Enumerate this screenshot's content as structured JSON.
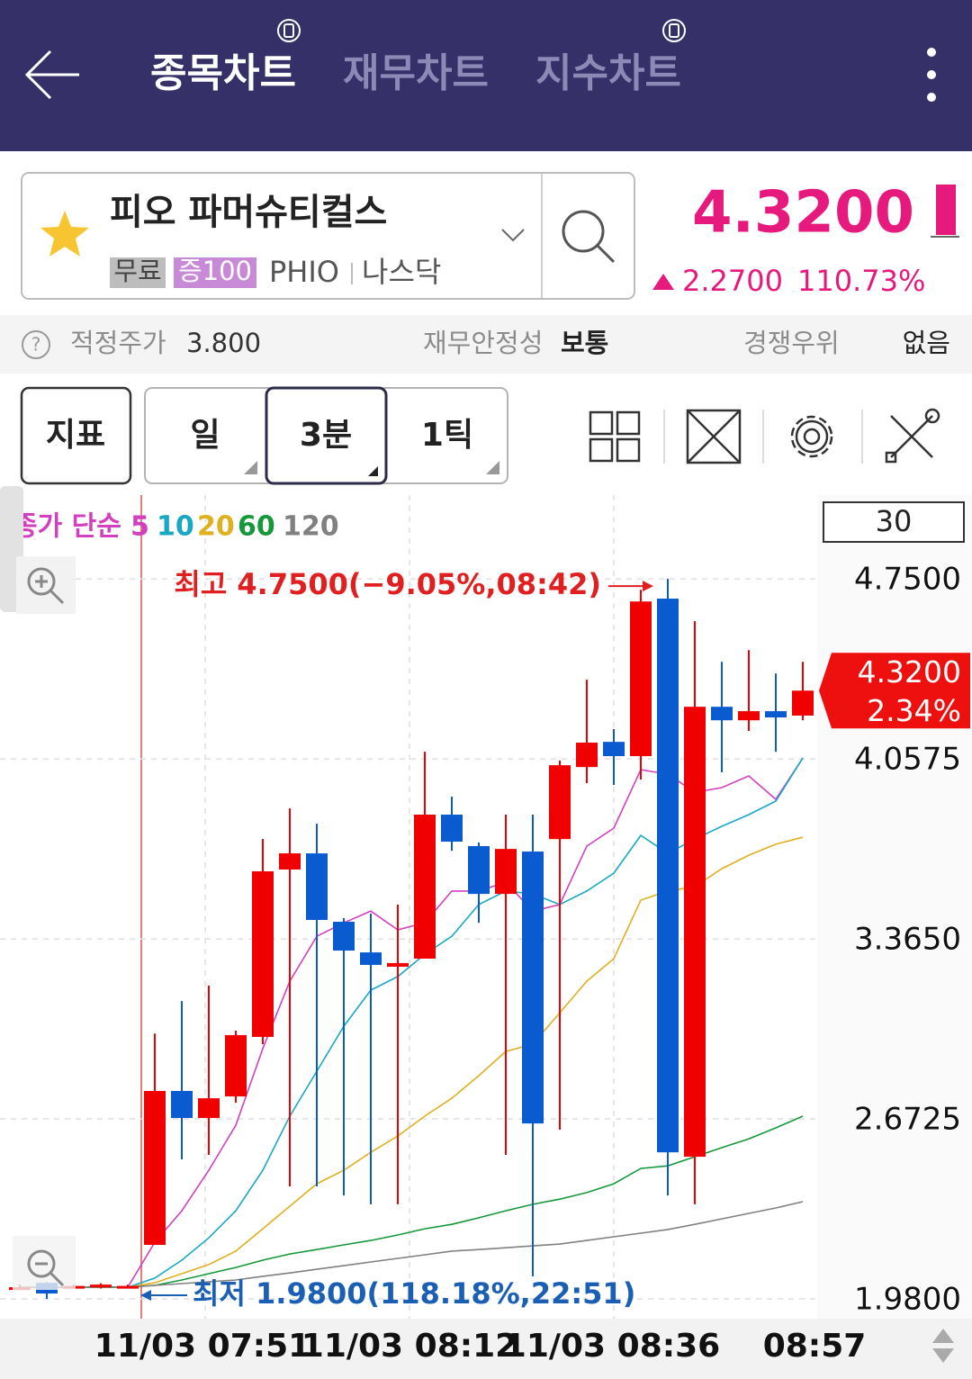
{
  "header": {
    "tabs": [
      "종목차트",
      "재무차트",
      "지수차트"
    ]
  },
  "stock": {
    "name": "피오 파머슈티컬스",
    "tags": [
      "무료",
      "증100"
    ],
    "ticker": "PHIO",
    "market": "나스닥",
    "price": "4.3200",
    "change": "2.2700",
    "change_pct": "110.73%"
  },
  "info": {
    "help": "?",
    "items": [
      {
        "label": "적정주가",
        "value": "3.800"
      },
      {
        "label": "재무안정성",
        "value": "보통"
      },
      {
        "label": "경쟁우위",
        "value": "없음"
      }
    ]
  },
  "toolbar": {
    "buttons": [
      "지표",
      "일",
      "3분",
      "1틱"
    ]
  },
  "chart_data": {
    "type": "candlestick",
    "legend_title": "종가 단순",
    "period_box": "30",
    "up_color": "#f00000",
    "down_color": "#0a5bd0",
    "ylim": [
      1.904,
      5.055
    ],
    "yticks": [
      {
        "value": 4.75,
        "label": "4.7500"
      },
      4.0575,
      {
        "value": 3.365,
        "label": "3.3650"
      },
      2.6725,
      {
        "value": 1.98,
        "label": "1.9800"
      }
    ],
    "grid": true,
    "x_labels": [
      "11/03 07:51",
      "11/03 08:12",
      "11/03 08:36",
      "08:57"
    ],
    "annotations": {
      "high": "최고 4.7500(−9.05%,08:42)",
      "low": "최저 1.9800(118.18%,22:51)"
    },
    "last_price_label": "4.3200",
    "last_change_label": "2.34%",
    "candles": [
      {
        "open": 2.025,
        "high": 2.035,
        "low": 2.02,
        "close": 2.025
      },
      {
        "open": 2.042,
        "high": 2.045,
        "low": 1.98,
        "close": 2.001
      },
      {
        "open": 2.025,
        "high": 2.035,
        "low": 2.02,
        "close": 2.03
      },
      {
        "open": 2.03,
        "high": 2.04,
        "low": 2.02,
        "close": 2.035
      },
      {
        "open": 2.025,
        "high": 2.035,
        "low": 2.02,
        "close": 2.03
      },
      {
        "open": 2.188,
        "high": 3.001,
        "low": 2.188,
        "close": 2.78
      },
      {
        "open": 2.78,
        "high": 3.126,
        "low": 2.517,
        "close": 2.676
      },
      {
        "open": 2.676,
        "high": 3.185,
        "low": 2.534,
        "close": 2.752
      },
      {
        "open": 2.759,
        "high": 3.012,
        "low": 2.735,
        "close": 2.995
      },
      {
        "open": 2.988,
        "high": 3.749,
        "low": 2.96,
        "close": 3.625
      },
      {
        "open": 3.632,
        "high": 3.867,
        "low": 2.413,
        "close": 3.694
      },
      {
        "open": 3.694,
        "high": 3.808,
        "low": 2.413,
        "close": 3.438
      },
      {
        "open": 3.431,
        "high": 3.445,
        "low": 2.378,
        "close": 3.32
      },
      {
        "open": 3.313,
        "high": 3.462,
        "low": 2.344,
        "close": 3.265
      },
      {
        "open": 3.258,
        "high": 3.497,
        "low": 2.344,
        "close": 3.272
      },
      {
        "open": 3.289,
        "high": 4.085,
        "low": 3.289,
        "close": 3.843
      },
      {
        "open": 3.843,
        "high": 3.912,
        "low": 3.704,
        "close": 3.739
      },
      {
        "open": 3.722,
        "high": 3.736,
        "low": 3.427,
        "close": 3.538
      },
      {
        "open": 3.538,
        "high": 3.843,
        "low": 2.534,
        "close": 3.711
      },
      {
        "open": 3.701,
        "high": 3.843,
        "low": 2.067,
        "close": 2.655
      },
      {
        "open": 3.749,
        "high": 4.051,
        "low": 2.631,
        "close": 4.033
      },
      {
        "open": 4.026,
        "high": 4.362,
        "low": 3.964,
        "close": 4.12
      },
      {
        "open": 4.123,
        "high": 4.172,
        "low": 3.957,
        "close": 4.068
      },
      {
        "open": 4.068,
        "high": 4.708,
        "low": 3.978,
        "close": 4.663
      },
      {
        "open": 4.674,
        "high": 4.75,
        "low": 2.378,
        "close": 2.544
      },
      {
        "open": 2.527,
        "high": 4.587,
        "low": 2.344,
        "close": 4.258
      },
      {
        "open": 4.258,
        "high": 4.431,
        "low": 4.006,
        "close": 4.206
      },
      {
        "open": 4.206,
        "high": 4.476,
        "low": 4.165,
        "close": 4.241
      },
      {
        "open": 4.241,
        "high": 4.386,
        "low": 4.085,
        "close": 4.217
      },
      {
        "open": 4.224,
        "high": 4.431,
        "low": 4.206,
        "close": 4.32
      }
    ],
    "series": [
      {
        "name": "5",
        "color": "#d23fbf",
        "values": [
          2.025,
          2.025,
          2.025,
          2.025,
          2.025,
          2.198,
          2.319,
          2.475,
          2.648,
          2.943,
          3.202,
          3.375,
          3.427,
          3.472,
          3.4,
          3.427,
          3.549,
          3.549,
          3.583,
          3.472,
          3.497,
          3.722,
          3.791,
          4.016,
          3.999,
          3.929,
          3.947,
          3.992,
          3.902,
          4.061
        ]
      },
      {
        "name": "10",
        "color": "#19a8c4",
        "values": [
          2.025,
          2.025,
          2.025,
          2.025,
          2.025,
          2.06,
          2.129,
          2.215,
          2.319,
          2.475,
          2.683,
          2.856,
          3.029,
          3.168,
          3.22,
          3.306,
          3.375,
          3.497,
          3.549,
          3.538,
          3.497,
          3.549,
          3.618,
          3.763,
          3.694,
          3.749,
          3.798,
          3.843,
          3.895,
          4.061
        ]
      },
      {
        "name": "20",
        "color": "#e0b020",
        "values": [
          2.025,
          2.025,
          2.025,
          2.025,
          2.025,
          2.042,
          2.077,
          2.112,
          2.164,
          2.25,
          2.337,
          2.423,
          2.475,
          2.544,
          2.607,
          2.683,
          2.752,
          2.839,
          2.932,
          2.96,
          3.081,
          3.202,
          3.289,
          3.514,
          3.549,
          3.566,
          3.635,
          3.687,
          3.729,
          3.756
        ]
      },
      {
        "name": "60",
        "color": "#16983a",
        "values": [
          2.025,
          2.025,
          2.025,
          2.025,
          2.025,
          2.032,
          2.053,
          2.077,
          2.101,
          2.129,
          2.153,
          2.17,
          2.188,
          2.205,
          2.226,
          2.25,
          2.267,
          2.292,
          2.319,
          2.344,
          2.364,
          2.389,
          2.423,
          2.482,
          2.492,
          2.527,
          2.562,
          2.596,
          2.638,
          2.683
        ]
      },
      {
        "name": "120",
        "color": "#808080",
        "values": [
          2.025,
          2.025,
          2.025,
          2.025,
          2.025,
          2.032,
          2.039,
          2.046,
          2.053,
          2.067,
          2.08,
          2.094,
          2.108,
          2.122,
          2.136,
          2.15,
          2.164,
          2.17,
          2.177,
          2.184,
          2.191,
          2.205,
          2.219,
          2.233,
          2.247,
          2.267,
          2.288,
          2.309,
          2.33,
          2.354
        ]
      }
    ]
  }
}
